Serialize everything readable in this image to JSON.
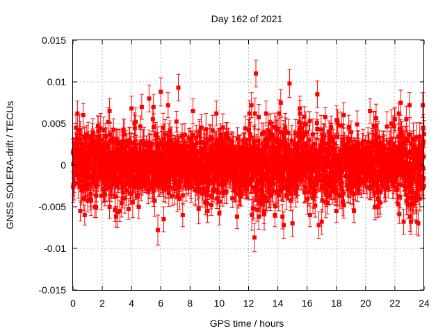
{
  "chart_data": {
    "type": "scatter",
    "title": "Day 162 of 2021",
    "xlabel": "GPS time / hours",
    "ylabel": "GNSS SOLERA-drift / TECUs",
    "xlim": [
      0,
      24
    ],
    "ylim": [
      -0.015,
      0.015
    ],
    "xticks": [
      "0",
      "2",
      "4",
      "6",
      "8",
      "10",
      "12",
      "14",
      "16",
      "18",
      "20",
      "22",
      "24"
    ],
    "yticks": [
      "0.015",
      "0.01",
      "0.005",
      "0",
      "-0.005",
      "-0.01",
      "-0.015"
    ],
    "grid": true,
    "series": [
      {
        "color": "#ff0000",
        "marker": "square",
        "error_bars": true,
        "points": [
          {
            "x": 0.2,
            "y": 0.0045,
            "err": 0.0015
          },
          {
            "x": 0.3,
            "y": 0.0062,
            "err": 0.0015
          },
          {
            "x": 0.5,
            "y": -0.0055,
            "err": 0.0012
          },
          {
            "x": 0.7,
            "y": 0.006,
            "err": 0.0014
          },
          {
            "x": 0.8,
            "y": -0.006,
            "err": 0.0012
          },
          {
            "x": 1.2,
            "y": -0.0035,
            "err": 0.0015
          },
          {
            "x": 1.5,
            "y": -0.005,
            "err": 0.0013
          },
          {
            "x": 2.5,
            "y": 0.0065,
            "err": 0.0015
          },
          {
            "x": 2.5,
            "y": -0.005,
            "err": 0.0014
          },
          {
            "x": 3.2,
            "y": -0.0055,
            "err": 0.0013
          },
          {
            "x": 4.0,
            "y": 0.0068,
            "err": 0.0015
          },
          {
            "x": 4.5,
            "y": -0.005,
            "err": 0.0014
          },
          {
            "x": 4.7,
            "y": 0.007,
            "err": 0.0015
          },
          {
            "x": 5.2,
            "y": 0.008,
            "err": 0.0016
          },
          {
            "x": 5.5,
            "y": 0.007,
            "err": 0.0015
          },
          {
            "x": 5.8,
            "y": -0.0078,
            "err": 0.0018
          },
          {
            "x": 6.0,
            "y": 0.0088,
            "err": 0.0017
          },
          {
            "x": 6.2,
            "y": -0.0065,
            "err": 0.0015
          },
          {
            "x": 6.5,
            "y": 0.0072,
            "err": 0.0015
          },
          {
            "x": 7.2,
            "y": 0.0093,
            "err": 0.0016
          },
          {
            "x": 7.5,
            "y": -0.006,
            "err": 0.0014
          },
          {
            "x": 8.2,
            "y": 0.0065,
            "err": 0.0015
          },
          {
            "x": 9.2,
            "y": -0.0055,
            "err": 0.0014
          },
          {
            "x": 9.8,
            "y": 0.0062,
            "err": 0.0015
          },
          {
            "x": 10.0,
            "y": -0.0058,
            "err": 0.0014
          },
          {
            "x": 12.2,
            "y": 0.0072,
            "err": 0.0015
          },
          {
            "x": 12.3,
            "y": -0.0052,
            "err": 0.0014
          },
          {
            "x": 12.4,
            "y": -0.0087,
            "err": 0.0017
          },
          {
            "x": 12.5,
            "y": 0.011,
            "err": 0.0016
          },
          {
            "x": 12.7,
            "y": -0.0062,
            "err": 0.0015
          },
          {
            "x": 13.2,
            "y": 0.0062,
            "err": 0.0015
          },
          {
            "x": 13.8,
            "y": -0.006,
            "err": 0.0014
          },
          {
            "x": 14.2,
            "y": 0.0075,
            "err": 0.0016
          },
          {
            "x": 14.4,
            "y": -0.0072,
            "err": 0.0016
          },
          {
            "x": 14.8,
            "y": 0.0098,
            "err": 0.0017
          },
          {
            "x": 15.0,
            "y": -0.007,
            "err": 0.0016
          },
          {
            "x": 15.5,
            "y": 0.0068,
            "err": 0.0015
          },
          {
            "x": 16.2,
            "y": -0.006,
            "err": 0.0014
          },
          {
            "x": 16.7,
            "y": 0.0085,
            "err": 0.0016
          },
          {
            "x": 16.8,
            "y": -0.0072,
            "err": 0.0016
          },
          {
            "x": 17.0,
            "y": -0.0068,
            "err": 0.0015
          },
          {
            "x": 18.0,
            "y": -0.0055,
            "err": 0.0014
          },
          {
            "x": 18.5,
            "y": 0.006,
            "err": 0.0015
          },
          {
            "x": 19.2,
            "y": -0.0055,
            "err": 0.0014
          },
          {
            "x": 20.3,
            "y": 0.0065,
            "err": 0.0015
          },
          {
            "x": 21.0,
            "y": -0.0045,
            "err": 0.0014
          },
          {
            "x": 22.0,
            "y": 0.0055,
            "err": 0.0014
          },
          {
            "x": 22.4,
            "y": 0.0075,
            "err": 0.0015
          },
          {
            "x": 22.6,
            "y": -0.0068,
            "err": 0.0015
          },
          {
            "x": 23.0,
            "y": 0.0072,
            "err": 0.0015
          },
          {
            "x": 23.1,
            "y": -0.0068,
            "err": 0.0015
          },
          {
            "x": 23.5,
            "y": -0.0068,
            "err": 0.0015
          },
          {
            "x": 23.6,
            "y": -0.007,
            "err": 0.0015
          },
          {
            "x": 23.9,
            "y": 0.0072,
            "err": 0.0015
          }
        ]
      }
    ]
  }
}
